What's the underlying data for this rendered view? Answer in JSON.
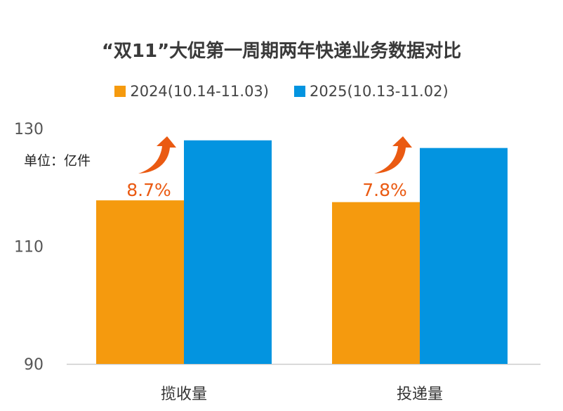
{
  "chart_data": {
    "type": "bar",
    "title": "“双11”大促第一周期两年快递业务数据对比",
    "unit_label": "单位：亿件",
    "categories": [
      "揽收量",
      "投递量"
    ],
    "series": [
      {
        "name": "2024(10.14-11.03)",
        "values": [
          117.8,
          117.5
        ]
      },
      {
        "name": "2025(10.13-11.02)",
        "values": [
          128.0,
          126.7
        ]
      }
    ],
    "annotations": [
      "8.7%",
      "7.8%"
    ],
    "yticks": [
      "130",
      "110",
      "90"
    ],
    "ylim": [
      90,
      130
    ],
    "grid": false,
    "legend": "top-center"
  },
  "colors": {
    "series_2024": "#F59A0E",
    "series_2025": "#0394E0",
    "arrow": "#EA5A12",
    "axis": "#cccccc"
  }
}
